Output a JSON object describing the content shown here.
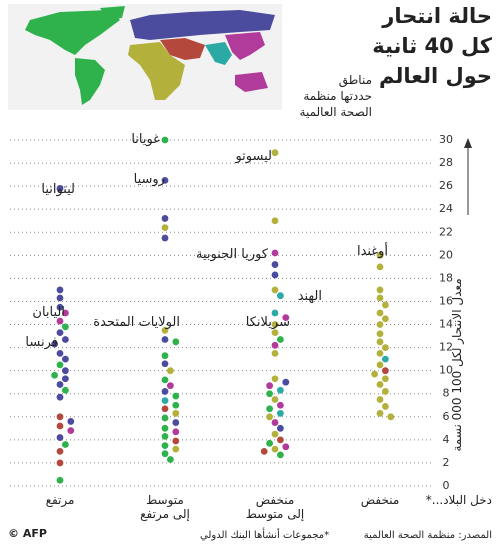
{
  "chart_data": {
    "type": "strip",
    "title_lines": [
      "حالة انتحار",
      "كل 40 ثانية",
      "حول العالم"
    ],
    "map_legend_lines": [
      "مناطق",
      "حددتها منظمة",
      "الصحة العالمية"
    ],
    "y_label": "معدل الانتحار لكل 100 000 نسمة",
    "x_label": "دخل البلاد...*",
    "categories": [
      "مرتفع",
      "متوسط\nإلى مرتفع",
      "منخفض\nإلى متوسط",
      "منخفض"
    ],
    "ylim": [
      0,
      30
    ],
    "yticks": [
      0,
      2,
      4,
      6,
      8,
      10,
      12,
      14,
      16,
      18,
      20,
      22,
      24,
      26,
      28,
      30
    ],
    "grid": true,
    "series": [
      {
        "color": "#2fb24c",
        "x": [
          "مرتفع",
          "مرتفع",
          "مرتفع",
          "مرتفع",
          "مرتفع",
          "مرتفع",
          "متوسط\nإلى مرتفع",
          "متوسط\nإلى مرتفع",
          "متوسط\nإلى مرتفع",
          "متوسط\nإلى مرتفع",
          "متوسط\nإلى مرتفع",
          "متوسط\nإلى مرتفع",
          "متوسط\nإلى مرتفع",
          "متوسط\nإلى مرتفع",
          "متوسط\nإلى مرتفع",
          "متوسط\nإلى مرتفع",
          "متوسط\nإلى مرتفع",
          "متوسط\nإلى مرتفع",
          "منخفض\nإلى متوسط",
          "منخفض\nإلى متوسط",
          "منخفض\nإلى متوسط",
          "منخفض\nإلى متوسط",
          "منخفض\nإلى متوسط"
        ],
        "values": [
          13.8,
          10.5,
          9.6,
          8.3,
          3.6,
          0.5,
          30,
          12.5,
          11.3,
          9.2,
          7.8,
          7,
          5.9,
          5,
          4.3,
          3.5,
          2.8,
          2.3,
          12.7,
          8,
          6.7,
          3.7,
          2.7
        ]
      },
      {
        "color": "#4b4c9e",
        "x": [
          "مرتفع",
          "مرتفع",
          "مرتفع",
          "مرتفع",
          "مرتفع",
          "مرتفع",
          "مرتفع",
          "مرتفع",
          "مرتفع",
          "مرتفع",
          "مرتفع",
          "مرتفع",
          "مرتفع",
          "مرتفع",
          "مرتفع",
          "متوسط\nإلى مرتفع",
          "متوسط\nإلى مرتفع",
          "متوسط\nإلى مرتفع",
          "متوسط\nإلى مرتفع",
          "متوسط\nإلى مرتفع",
          "متوسط\nإلى مرتفع",
          "متوسط\nإلى مرتفع",
          "منخفض\nإلى متوسط",
          "منخفض\nإلى متوسط",
          "منخفض\nإلى متوسط",
          "منخفض\nإلى متوسط"
        ],
        "values": [
          25.8,
          17,
          16.3,
          15.5,
          13.3,
          12.7,
          12.3,
          11.5,
          11,
          10,
          9.3,
          8.8,
          7.7,
          5.6,
          4.2,
          26.5,
          23.2,
          21.5,
          12.7,
          10.6,
          8.2,
          5.5,
          19.2,
          18.3,
          9,
          5
        ]
      },
      {
        "color": "#b3b13c",
        "x": [
          "متوسط\nإلى مرتفع",
          "متوسط\nإلى مرتفع",
          "متوسط\nإلى مرتفع",
          "متوسط\nإلى مرتفع",
          "متوسط\nإلى مرتفع",
          "منخفض\nإلى متوسط",
          "منخفض\nإلى متوسط",
          "منخفض\nإلى متوسط",
          "منخفض\nإلى متوسط",
          "منخفض\nإلى متوسط",
          "منخفض\nإلى متوسط",
          "منخفض\nإلى متوسط",
          "منخفض\nإلى متوسط",
          "منخفض\nإلى متوسط",
          "منخفض\nإلى متوسط",
          "منخفض\nإلى متوسط",
          "منخفض",
          "منخفض",
          "منخفض",
          "منخفض",
          "منخفض",
          "منخفض",
          "منخفض",
          "منخفض",
          "منخفض",
          "منخفض",
          "منخفض",
          "منخفض",
          "منخفض",
          "منخفض",
          "منخفض",
          "منخفض",
          "منخفض",
          "منخفض",
          "منخفض",
          "منخفض",
          "منخفض"
        ],
        "values": [
          22.4,
          13.5,
          10,
          6.3,
          3.2,
          28.9,
          23,
          17,
          14,
          13.3,
          11.5,
          9.3,
          7.5,
          6,
          4.5,
          3.2,
          20,
          19,
          17,
          16.3,
          15.7,
          15,
          14.5,
          14,
          13.2,
          12.5,
          12,
          11.5,
          10.5,
          9.7,
          9.3,
          8.8,
          8.2,
          7.5,
          6.9,
          6.3,
          6
        ]
      },
      {
        "color": "#b4483d",
        "x": [
          "مرتفع",
          "مرتفع",
          "مرتفع",
          "مرتفع",
          "متوسط\nإلى مرتفع",
          "متوسط\nإلى مرتفع",
          "منخفض\nإلى متوسط",
          "منخفض\nإلى متوسط",
          "منخفض"
        ],
        "values": [
          6,
          5.2,
          3,
          2,
          6.7,
          3.9,
          4,
          3,
          10
        ]
      },
      {
        "color": "#2aa9a5",
        "x": [
          "متوسط\nإلى مرتفع",
          "منخفض\nإلى متوسط",
          "منخفض\nإلى متوسط",
          "منخفض\nإلى متوسط",
          "منخفض\nإلى متوسط",
          "منخفض"
        ],
        "values": [
          7.4,
          16.5,
          15,
          8.3,
          6.3,
          11
        ]
      },
      {
        "color": "#b13b9b",
        "x": [
          "مرتفع",
          "مرتفع",
          "مرتفع",
          "متوسط\nإلى مرتفع",
          "متوسط\nإلى مرتفع",
          "منخفض\nإلى متوسط",
          "منخفض\nإلى متوسط",
          "منخفض\nإلى متوسط",
          "منخفض\nإلى متوسط",
          "منخفض\nإلى متوسط",
          "منخفض\nإلى متوسط",
          "منخفض\nإلى متوسط"
        ],
        "values": [
          15,
          14.3,
          4.8,
          8.7,
          4.7,
          20.2,
          14.6,
          12.2,
          8.7,
          7,
          5.5,
          3.4
        ]
      }
    ],
    "annotations": [
      "غويانا",
      "ليسوتو",
      "روسيا",
      "ليتوانيا",
      "كوريا الجنوبية",
      "أوغندا",
      "الهند",
      "سريلانكا",
      "الولايات المتحدة",
      "اليابان",
      "فرنسا"
    ],
    "source": "المصدر: منظمة الصحة العالمية",
    "note": "*مجموعات أنشأها البنك الدولي",
    "credit": "© AFP"
  }
}
